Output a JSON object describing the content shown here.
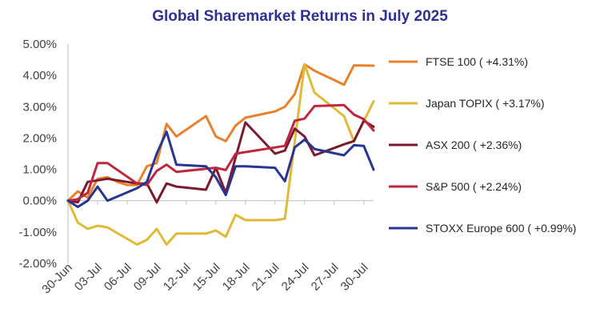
{
  "chart_data": {
    "type": "line",
    "title": "Global Sharemarket Returns in July 2025",
    "xlabel": "",
    "ylabel": "",
    "ylim": [
      -2.0,
      5.0
    ],
    "y_ticks": [
      5.0,
      4.0,
      3.0,
      2.0,
      1.0,
      0.0,
      -1.0,
      -2.0
    ],
    "y_tick_labels": [
      "5.00%",
      "4.00%",
      "3.00%",
      "2.00%",
      "1.00%",
      "0.00%",
      "-1.00%",
      "-2.00%"
    ],
    "x_tick_labels": [
      "30-Jun",
      "03-Jul",
      "06-Jul",
      "09-Jul",
      "12-Jul",
      "15-Jul",
      "18-Jul",
      "21-Jul",
      "24-Jul",
      "27-Jul",
      "30-Jul"
    ],
    "grid": false,
    "legend_position": "right",
    "series": [
      {
        "name": "FTSE 100 ( +4.31%)",
        "color": "#E9802B",
        "points": [
          [
            0,
            0.0
          ],
          [
            1,
            0.3
          ],
          [
            2,
            0.1
          ],
          [
            3,
            0.7
          ],
          [
            4,
            0.75
          ],
          [
            5,
            0.6
          ],
          [
            6,
            0.5
          ],
          [
            7,
            0.5
          ],
          [
            8,
            1.1
          ],
          [
            9,
            1.2
          ],
          [
            10,
            2.45
          ],
          [
            11,
            2.05
          ],
          [
            14,
            2.7
          ],
          [
            15,
            2.05
          ],
          [
            16,
            1.9
          ],
          [
            17,
            2.4
          ],
          [
            18,
            2.65
          ],
          [
            21,
            2.85
          ],
          [
            22,
            3.0
          ],
          [
            23,
            3.4
          ],
          [
            24,
            4.35
          ],
          [
            25,
            4.15
          ],
          [
            28,
            3.7
          ],
          [
            29,
            4.32
          ],
          [
            31,
            4.31
          ]
        ]
      },
      {
        "name": "Japan TOPIX ( +3.17%)",
        "color": "#E2B936",
        "points": [
          [
            0,
            0.0
          ],
          [
            1,
            -0.7
          ],
          [
            2,
            -0.9
          ],
          [
            3,
            -0.8
          ],
          [
            4,
            -0.85
          ],
          [
            7,
            -1.4
          ],
          [
            8,
            -1.25
          ],
          [
            9,
            -0.9
          ],
          [
            10,
            -1.4
          ],
          [
            11,
            -1.05
          ],
          [
            14,
            -1.05
          ],
          [
            15,
            -0.95
          ],
          [
            16,
            -1.15
          ],
          [
            17,
            -0.45
          ],
          [
            18,
            -0.62
          ],
          [
            21,
            -0.62
          ],
          [
            22,
            -0.58
          ],
          [
            24,
            4.35
          ],
          [
            25,
            3.45
          ],
          [
            28,
            2.7
          ],
          [
            29,
            1.9
          ],
          [
            31,
            3.17
          ]
        ]
      },
      {
        "name": "ASX 200 ( +2.36%)",
        "color": "#7B1A2F",
        "points": [
          [
            0,
            0.0
          ],
          [
            1,
            -0.05
          ],
          [
            2,
            0.6
          ],
          [
            3,
            0.65
          ],
          [
            4,
            0.7
          ],
          [
            7,
            0.55
          ],
          [
            8,
            0.55
          ],
          [
            9,
            -0.05
          ],
          [
            10,
            0.55
          ],
          [
            11,
            0.45
          ],
          [
            14,
            0.35
          ],
          [
            15,
            1.05
          ],
          [
            16,
            0.25
          ],
          [
            18,
            2.5
          ],
          [
            21,
            1.5
          ],
          [
            22,
            1.6
          ],
          [
            23,
            2.3
          ],
          [
            24,
            2.05
          ],
          [
            25,
            1.45
          ],
          [
            28,
            1.8
          ],
          [
            29,
            1.9
          ],
          [
            30,
            2.55
          ],
          [
            31,
            2.36
          ]
        ]
      },
      {
        "name": "S&P 500 ( +2.24%)",
        "color": "#C0273D",
        "points": [
          [
            0,
            0.0
          ],
          [
            1,
            0.05
          ],
          [
            2,
            0.25
          ],
          [
            3,
            1.2
          ],
          [
            4,
            1.2
          ],
          [
            7,
            0.55
          ],
          [
            8,
            0.5
          ],
          [
            9,
            0.95
          ],
          [
            10,
            1.15
          ],
          [
            11,
            0.92
          ],
          [
            14,
            1.02
          ],
          [
            15,
            1.05
          ],
          [
            16,
            0.98
          ],
          [
            17,
            1.5
          ],
          [
            18,
            1.55
          ],
          [
            21,
            1.7
          ],
          [
            22,
            1.75
          ],
          [
            23,
            2.55
          ],
          [
            24,
            2.62
          ],
          [
            25,
            3.02
          ],
          [
            28,
            3.05
          ],
          [
            29,
            2.75
          ],
          [
            30,
            2.6
          ],
          [
            31,
            2.24
          ]
        ]
      },
      {
        "name": "STOXX Europe 600 ( +0.99%)",
        "color": "#283593",
        "points": [
          [
            0,
            0.0
          ],
          [
            1,
            -0.2
          ],
          [
            2,
            0.0
          ],
          [
            3,
            0.45
          ],
          [
            4,
            0.0
          ],
          [
            7,
            0.4
          ],
          [
            8,
            0.6
          ],
          [
            9,
            1.5
          ],
          [
            10,
            2.2
          ],
          [
            11,
            1.15
          ],
          [
            14,
            1.1
          ],
          [
            15,
            0.75
          ],
          [
            16,
            0.18
          ],
          [
            17,
            1.1
          ],
          [
            18,
            1.1
          ],
          [
            21,
            1.05
          ],
          [
            22,
            0.62
          ],
          [
            23,
            1.7
          ],
          [
            24,
            1.95
          ],
          [
            25,
            1.65
          ],
          [
            28,
            1.45
          ],
          [
            29,
            1.77
          ],
          [
            30,
            1.75
          ],
          [
            31,
            0.99
          ]
        ]
      }
    ]
  }
}
